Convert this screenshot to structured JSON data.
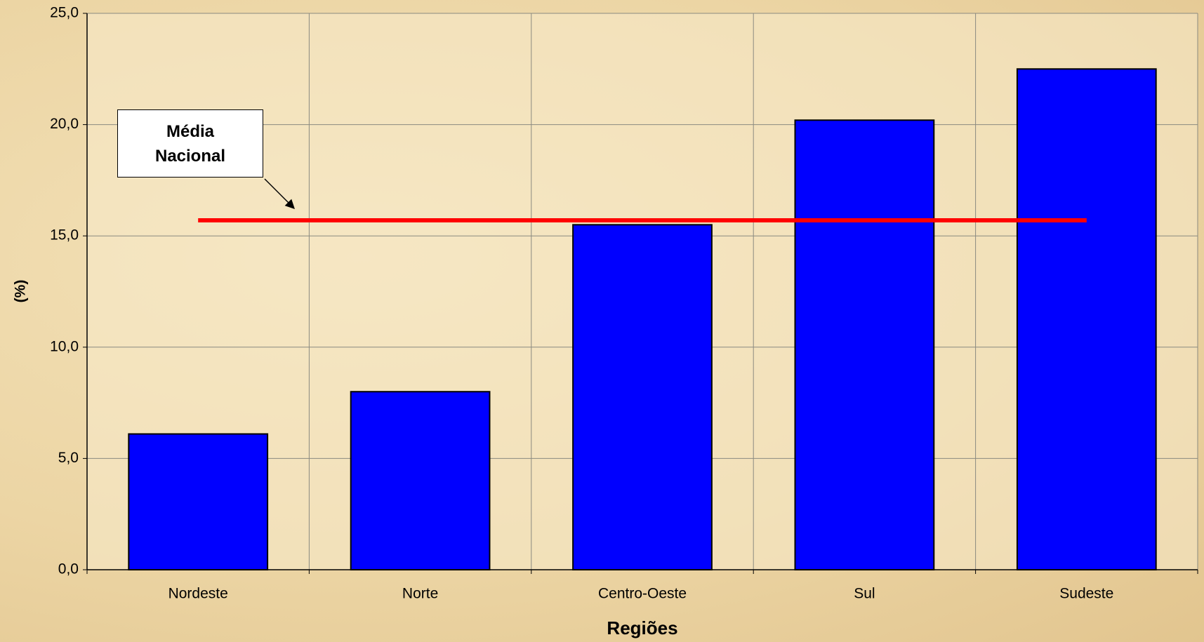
{
  "chart_data": {
    "type": "bar",
    "x_label": "Regiões",
    "y_label": "(%)",
    "categories": [
      "Nordeste",
      "Norte",
      "Centro-Oeste",
      "Sul",
      "Sudeste"
    ],
    "values": [
      6.1,
      8.0,
      15.5,
      20.2,
      22.5
    ],
    "color": "#0000ff",
    "ylim": [
      0,
      25
    ],
    "yticks": [
      {
        "value": 0,
        "label": "0,0"
      },
      {
        "value": 5,
        "label": "5,0"
      },
      {
        "value": 10,
        "label": "10,0"
      },
      {
        "value": 15,
        "label": "15,0"
      },
      {
        "value": 20,
        "label": "20,0"
      },
      {
        "value": 25,
        "label": "25,0"
      }
    ],
    "grid": true,
    "reference_line": {
      "value": 15.7,
      "color": "#ff0000",
      "label": "Média Nacional"
    }
  }
}
